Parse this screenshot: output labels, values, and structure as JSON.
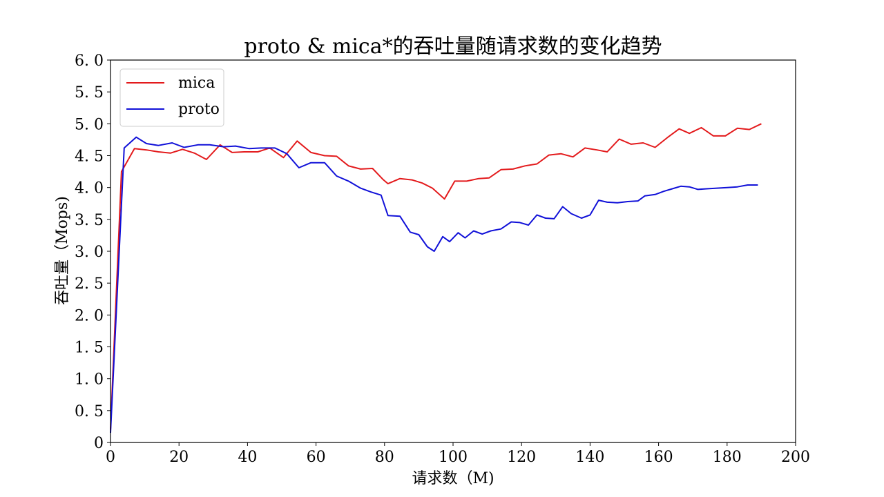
{
  "chart_data": {
    "type": "line",
    "title": "proto & mica*的吞吐量随请求数的变化趋势",
    "xlabel": "请求数（M)",
    "ylabel": "吞吐量（Mops)",
    "xlim": [
      0,
      200
    ],
    "ylim": [
      0,
      6
    ],
    "xticks": [
      0,
      20,
      40,
      60,
      80,
      100,
      120,
      140,
      160,
      180,
      200
    ],
    "xtick_labels": [
      "0",
      "20",
      "40",
      "60",
      "80",
      "100",
      "120",
      "140",
      "160",
      "180",
      "200"
    ],
    "yticks": [
      0,
      0.5,
      1.0,
      1.5,
      2.0,
      2.5,
      3.0,
      3.5,
      4.0,
      4.5,
      5.0,
      5.5,
      6.0
    ],
    "ytick_labels": [
      "0",
      "0. 5",
      "1. 0",
      "1. 5",
      "2. 0",
      "2. 5",
      "3. 0",
      "3. 5",
      "4. 0",
      "4. 5",
      "5. 0",
      "5. 5",
      "6. 0"
    ],
    "grid": false,
    "legend_position": "top-left",
    "series": [
      {
        "name": "mica",
        "color": "#e31a1c",
        "x": [
          0,
          3.2,
          7,
          10.5,
          14,
          17.5,
          21,
          24.5,
          28,
          32,
          35.5,
          39,
          43,
          46.5,
          50.5,
          54.5,
          58.5,
          62.5,
          66,
          69.5,
          73,
          76.5,
          79.5,
          81,
          84.5,
          88,
          91,
          94,
          97.5,
          100.5,
          104,
          107.5,
          110.5,
          114,
          117.5,
          121,
          124.5,
          128,
          131.5,
          135,
          138.5,
          142,
          145,
          148.5,
          152,
          155.5,
          159,
          162.5,
          166,
          169,
          172.5,
          176,
          179.5,
          183,
          186.5,
          190
        ],
        "y": [
          0.2,
          4.25,
          4.61,
          4.59,
          4.56,
          4.54,
          4.6,
          4.54,
          4.44,
          4.67,
          4.55,
          4.56,
          4.56,
          4.62,
          4.47,
          4.73,
          4.55,
          4.5,
          4.49,
          4.34,
          4.29,
          4.3,
          4.13,
          4.06,
          4.14,
          4.12,
          4.07,
          3.99,
          3.82,
          4.1,
          4.1,
          4.14,
          4.15,
          4.28,
          4.29,
          4.34,
          4.37,
          4.51,
          4.53,
          4.48,
          4.62,
          4.59,
          4.56,
          4.76,
          4.68,
          4.7,
          4.63,
          4.78,
          4.92,
          4.85,
          4.94,
          4.81,
          4.81,
          4.93,
          4.91,
          5.0
        ]
      },
      {
        "name": "proto",
        "color": "#1010d8",
        "x": [
          0,
          4,
          7.5,
          10.5,
          14,
          18,
          21.5,
          25.5,
          29,
          33,
          36.5,
          40.5,
          44,
          48,
          51.5,
          55,
          58.5,
          62.5,
          66,
          69.5,
          73,
          76,
          79,
          81,
          84.5,
          87.5,
          90,
          92.5,
          94.5,
          97,
          99,
          101.5,
          103.5,
          106,
          108.5,
          111,
          114,
          117,
          119.5,
          122,
          124.5,
          127,
          129.5,
          132,
          134.5,
          137.5,
          140,
          142.5,
          145,
          148,
          151,
          154,
          156,
          159,
          161.5,
          164,
          166.5,
          169,
          171.5,
          174,
          177,
          180,
          183,
          186,
          189
        ],
        "y": [
          0.15,
          4.62,
          4.79,
          4.69,
          4.66,
          4.7,
          4.63,
          4.67,
          4.67,
          4.64,
          4.65,
          4.61,
          4.62,
          4.62,
          4.53,
          4.31,
          4.39,
          4.39,
          4.18,
          4.1,
          3.99,
          3.93,
          3.88,
          3.56,
          3.55,
          3.3,
          3.26,
          3.07,
          3.0,
          3.23,
          3.15,
          3.29,
          3.21,
          3.32,
          3.27,
          3.32,
          3.35,
          3.46,
          3.45,
          3.41,
          3.57,
          3.52,
          3.51,
          3.7,
          3.59,
          3.52,
          3.57,
          3.8,
          3.77,
          3.76,
          3.78,
          3.79,
          3.87,
          3.89,
          3.94,
          3.98,
          4.02,
          4.01,
          3.97,
          3.98,
          3.99,
          4.0,
          4.01,
          4.04,
          4.04
        ]
      }
    ]
  }
}
